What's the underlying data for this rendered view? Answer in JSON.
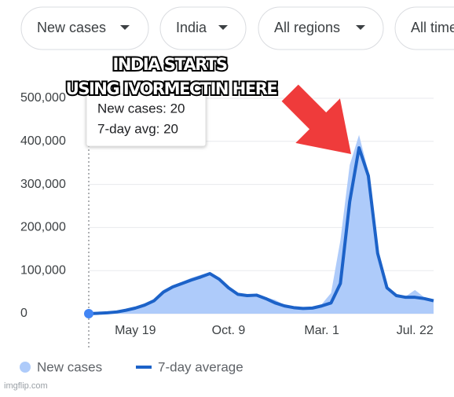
{
  "filters": [
    "New cases",
    "India",
    "All regions",
    "All time"
  ],
  "annotation": [
    "INDIA STARTS",
    "USING IVORMECTIN HERE"
  ],
  "tooltip": [
    "New cases: 20",
    "7-day avg: 20"
  ],
  "watermark": "imgflip.com",
  "chart_data": {
    "type": "area-line",
    "categories": [
      null,
      null,
      null,
      null,
      null,
      "May 19",
      null,
      null,
      null,
      null,
      null,
      null,
      null,
      null,
      null,
      "Oct. 9",
      null,
      null,
      null,
      null,
      null,
      null,
      null,
      null,
      null,
      "Mar. 1",
      null,
      null,
      null,
      null,
      null,
      null,
      null,
      null,
      null,
      "Jul. 22",
      null,
      null
    ],
    "series": [
      {
        "name": "New cases",
        "color": "#aecbfa",
        "values": [
          0,
          1500,
          3000,
          5000,
          9000,
          15000,
          22000,
          33000,
          55000,
          66000,
          74000,
          83000,
          90000,
          96000,
          82000,
          62000,
          48000,
          44000,
          46000,
          38000,
          32000,
          20000,
          16000,
          14000,
          15000,
          22000,
          48000,
          170000,
          345000,
          415000,
          330000,
          145000,
          62000,
          45000,
          40000,
          55000,
          38000,
          32000
        ]
      },
      {
        "name": "7-day average",
        "color": "#1c62c8",
        "values": [
          0,
          1000,
          2000,
          4000,
          8000,
          13000,
          20000,
          30000,
          50000,
          62000,
          70000,
          78000,
          85000,
          93000,
          80000,
          60000,
          45000,
          42000,
          43000,
          35000,
          25000,
          18000,
          14000,
          12000,
          13000,
          18000,
          25000,
          70000,
          260000,
          385000,
          320000,
          140000,
          60000,
          42000,
          38000,
          38000,
          35000,
          30000
        ]
      }
    ],
    "ylim": [
      0,
      500000
    ],
    "yticks": [
      0,
      {
        "value": 100000,
        "label": "100,000"
      },
      {
        "value": 200000,
        "label": "200,000"
      },
      {
        "value": 300000,
        "label": "300,000"
      },
      {
        "value": 400000,
        "label": "400,000"
      },
      {
        "value": 500000,
        "label": "500,000"
      }
    ],
    "grid": true
  }
}
